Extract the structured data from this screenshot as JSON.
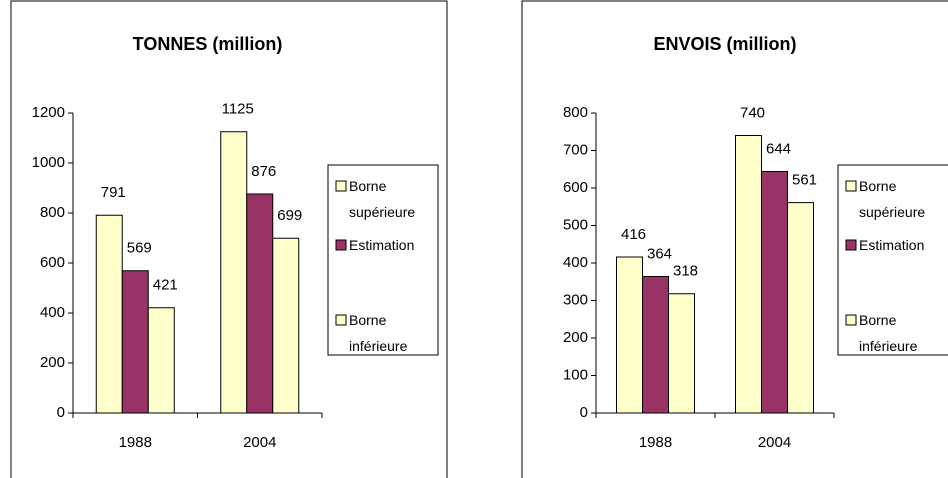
{
  "chart_data": [
    {
      "type": "bar",
      "title": "TONNES (million)",
      "categories": [
        "1988",
        "2004"
      ],
      "series": [
        {
          "name": "Borne supérieure",
          "color": "#ffffcc",
          "values": [
            791,
            1125
          ]
        },
        {
          "name": "Estimation",
          "color": "#993366",
          "values": [
            569,
            876
          ]
        },
        {
          "name": "Borne inférieure",
          "color": "#ffffcc",
          "values": [
            421,
            699
          ]
        }
      ],
      "ylim": [
        0,
        1200
      ],
      "yticks": [
        0,
        200,
        400,
        600,
        800,
        1000,
        1200
      ],
      "grid": false,
      "legend": "right"
    },
    {
      "type": "bar",
      "title": "ENVOIS (million)",
      "categories": [
        "1988",
        "2004"
      ],
      "series": [
        {
          "name": "Borne supérieure",
          "color": "#ffffcc",
          "values": [
            416,
            740
          ]
        },
        {
          "name": "Estimation",
          "color": "#993366",
          "values": [
            364,
            644
          ]
        },
        {
          "name": "Borne inférieure",
          "color": "#ffffcc",
          "values": [
            318,
            561
          ]
        }
      ],
      "ylim": [
        0,
        800
      ],
      "yticks": [
        0,
        100,
        200,
        300,
        400,
        500,
        600,
        700,
        800
      ],
      "grid": false,
      "legend": "right"
    }
  ]
}
